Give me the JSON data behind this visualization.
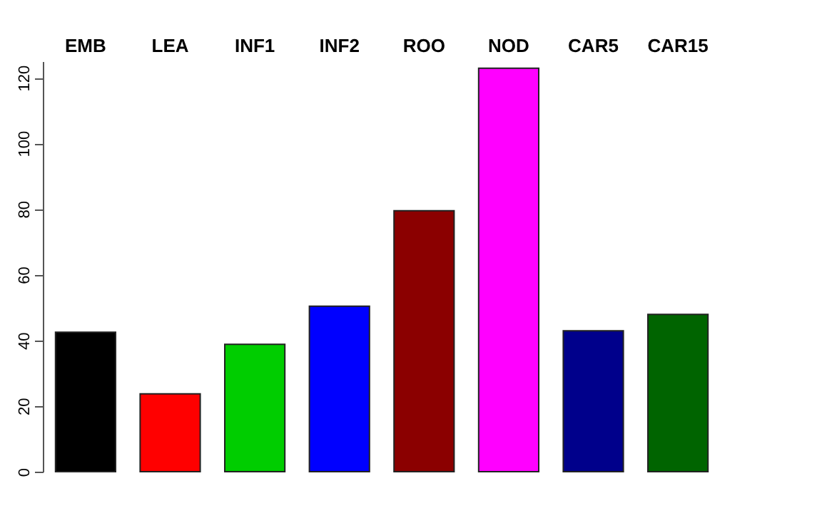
{
  "chart_data": {
    "type": "bar",
    "categories": [
      "EMB",
      "LEA",
      "INF1",
      "INF2",
      "ROO",
      "NOD",
      "CAR5",
      "CAR15"
    ],
    "values": [
      42.5,
      23.7,
      38.8,
      50.4,
      79.5,
      122.9,
      42.9,
      47.9
    ],
    "colors": [
      "#000000",
      "#ff0000",
      "#00cd00",
      "#0000ff",
      "#8b0000",
      "#ff00ff",
      "#00008b",
      "#006400"
    ],
    "ylim": [
      0,
      125
    ],
    "yticks": [
      0,
      20,
      40,
      60,
      80,
      100,
      120
    ],
    "grid": false
  }
}
